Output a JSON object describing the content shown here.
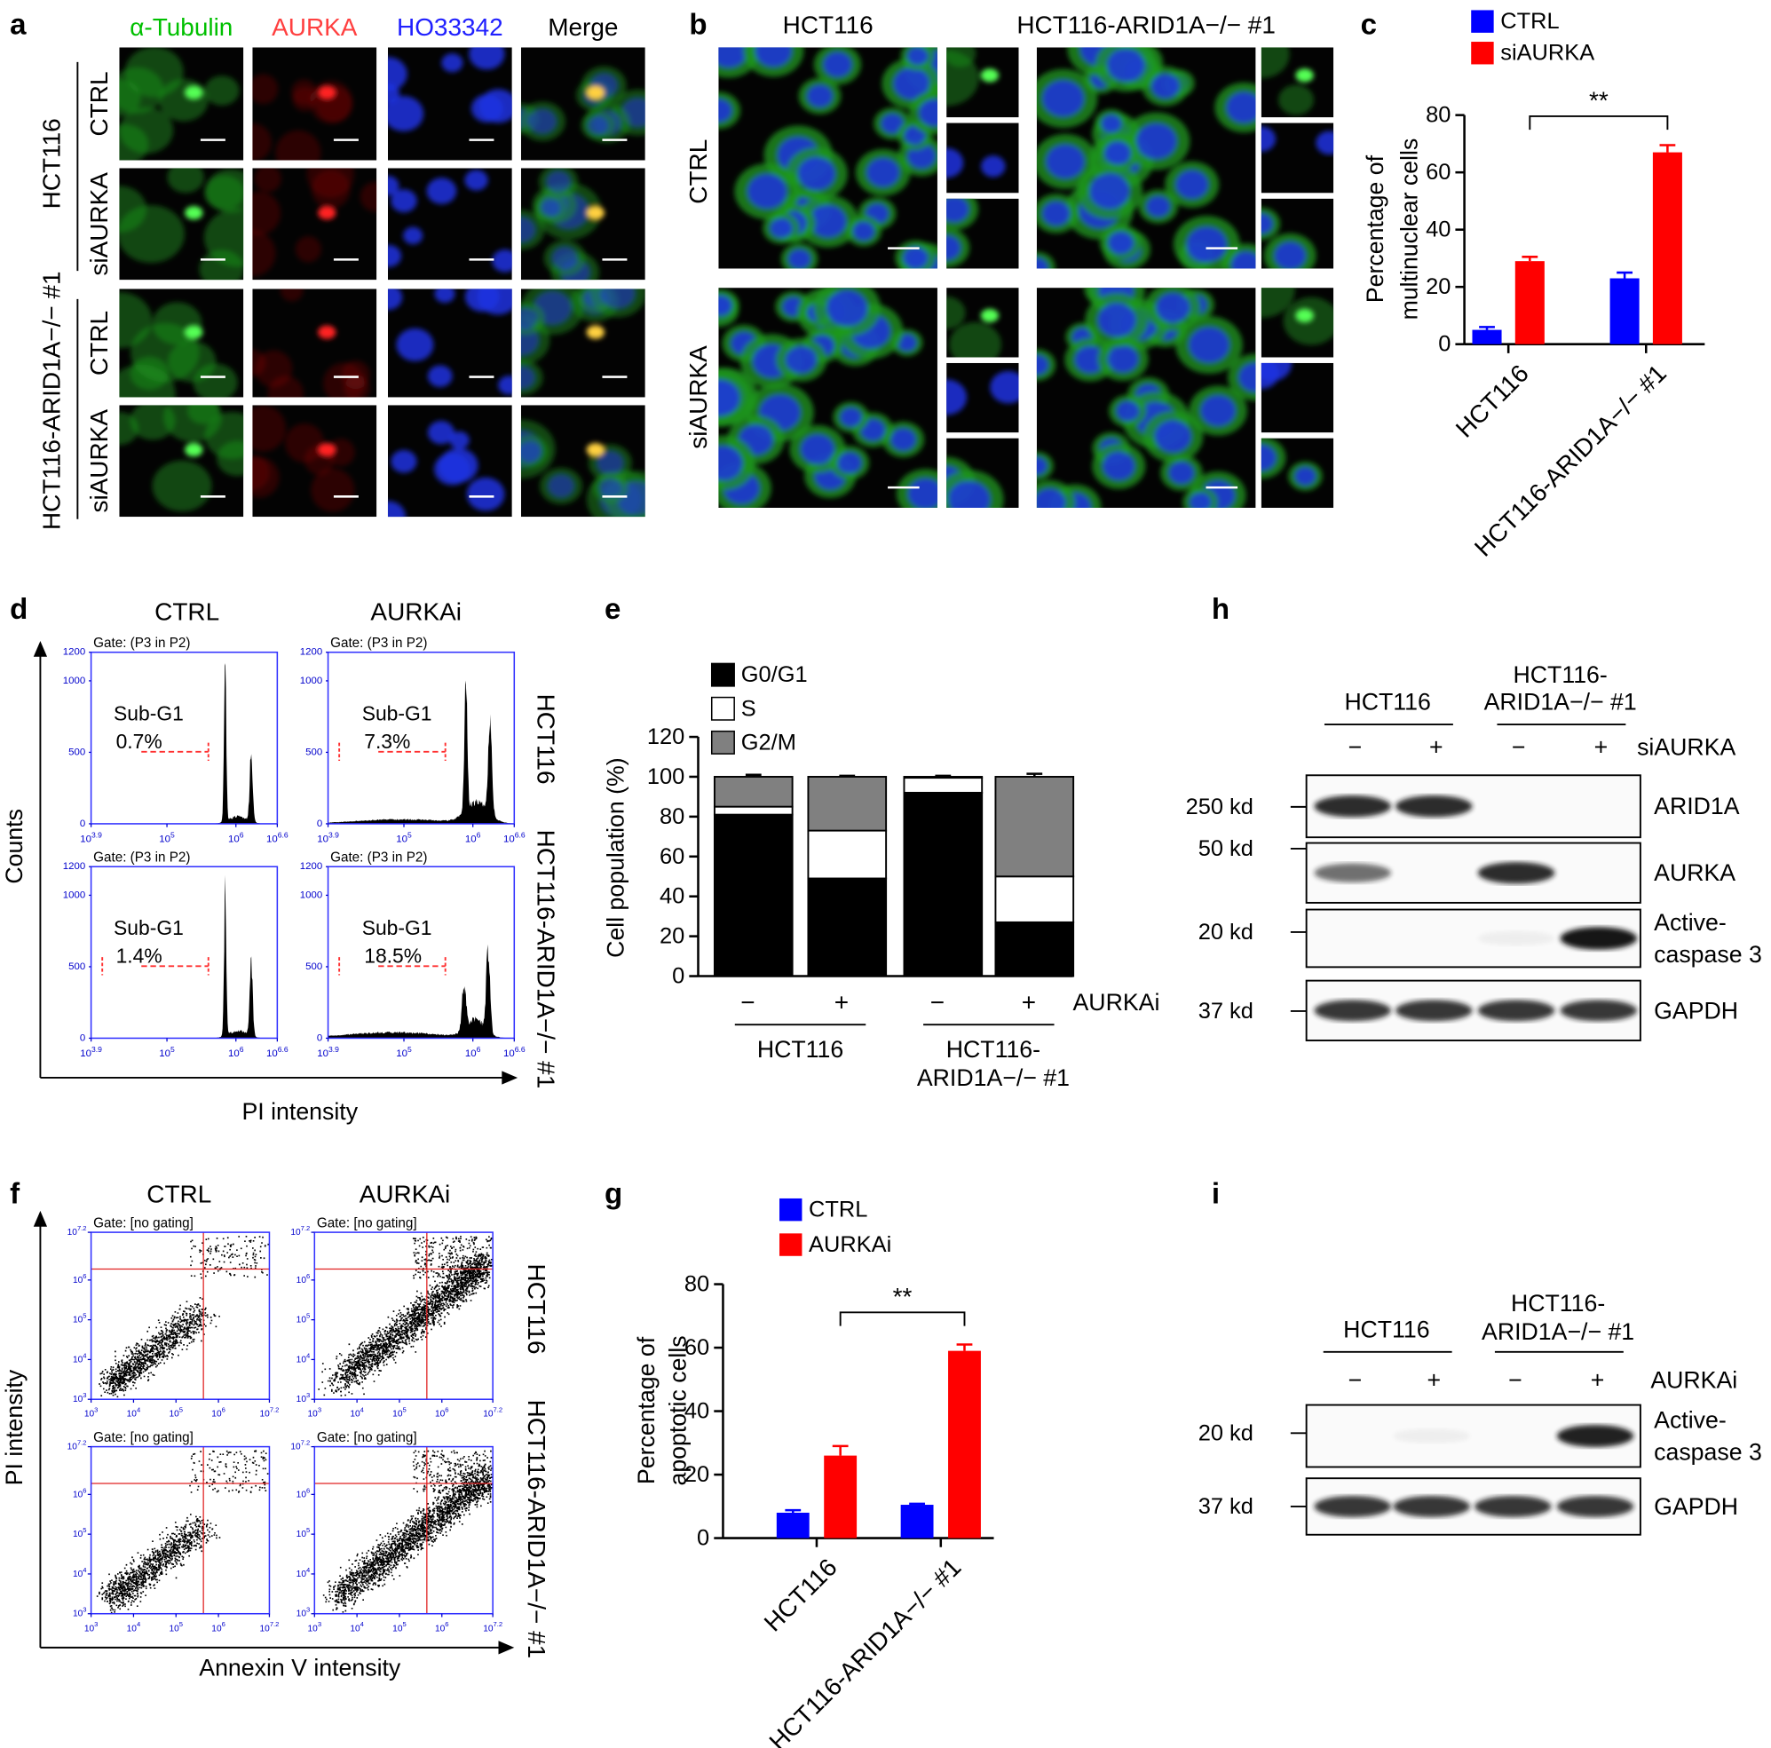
{
  "panel_labels": [
    "a",
    "b",
    "c",
    "d",
    "e",
    "f",
    "g",
    "h",
    "i"
  ],
  "panel_a": {
    "columns": [
      "α-Tubulin",
      "AURKA",
      "HO33342",
      "Merge"
    ],
    "rows": [
      "CTRL",
      "siAURKA",
      "CTRL",
      "siAURKA"
    ],
    "groups": [
      "HCT116",
      "HCT116-ARID1A−/− #1"
    ]
  },
  "panel_b": {
    "columns": [
      "HCT116",
      "HCT116-ARID1A−/− #1"
    ],
    "rows": [
      "CTRL",
      "siAURKA"
    ]
  },
  "panel_d": {
    "columns": [
      "CTRL",
      "AURKAi"
    ],
    "rows": [
      "HCT116",
      "HCT116-ARID1A−/− #1"
    ],
    "gate": "Gate: (P3 in P2)",
    "subg1": {
      "label": "Sub-G1",
      "values": [
        "0.7%",
        "7.3%",
        "1.4%",
        "18.5%"
      ]
    },
    "yticks": [
      1200,
      1000,
      500,
      0
    ],
    "xticks": [
      {
        "base": 10,
        "exp": 3.9
      },
      {
        "base": 10,
        "exp": 5
      },
      {
        "base": 10,
        "exp": 6
      },
      {
        "base": 10,
        "exp": 6.6
      }
    ],
    "xlabel": "PI intensity",
    "ylabel": "Counts"
  },
  "panel_f": {
    "columns": [
      "CTRL",
      "AURKAi"
    ],
    "rows": [
      "HCT116",
      "HCT116-ARID1A−/− #1"
    ],
    "gate": "Gate: [no gating]",
    "ticks": [
      {
        "base": 10,
        "exp": 3
      },
      {
        "base": 10,
        "exp": 4
      },
      {
        "base": 10,
        "exp": 5
      },
      {
        "base": 10,
        "exp": 6
      },
      {
        "base": 10,
        "exp": 7.2
      }
    ],
    "xlabel": "Annexin V intensity",
    "ylabel": "PI intensity"
  },
  "panel_h": {
    "groups": [
      [
        "HCT116"
      ],
      [
        "HCT116-",
        "ARID1A−/− #1"
      ]
    ],
    "lanes": [
      "−",
      "+",
      "−",
      "+"
    ],
    "treatment": "siAURKA",
    "blots": [
      {
        "marker": "250 kd",
        "label": [
          "ARID1A"
        ]
      },
      {
        "marker": "50 kd",
        "label": [
          "AURKA"
        ]
      },
      {
        "marker": "20 kd",
        "label": [
          "Active-",
          "caspase 3"
        ]
      },
      {
        "marker": "37 kd",
        "label": [
          "GAPDH"
        ]
      }
    ]
  },
  "panel_i": {
    "groups": [
      [
        "HCT116"
      ],
      [
        "HCT116-",
        "ARID1A−/− #1"
      ]
    ],
    "lanes": [
      "−",
      "+",
      "−",
      "+"
    ],
    "treatment": "AURKAi",
    "blots": [
      {
        "marker": "20 kd",
        "label": [
          "Active-",
          "caspase 3"
        ]
      },
      {
        "marker": "37 kd",
        "label": [
          "GAPDH"
        ]
      }
    ]
  },
  "chart_data": [
    {
      "type": "bar",
      "categories": [
        "HCT116",
        "HCT116-ARID1A−/− #1"
      ],
      "series": [
        {
          "name": "CTRL",
          "color": "#0000ff",
          "values": [
            5,
            23
          ],
          "errors": [
            1,
            2
          ]
        },
        {
          "name": "siAURKA",
          "color": "#ff0000",
          "values": [
            29,
            67
          ],
          "errors": [
            1.5,
            2.5
          ]
        }
      ],
      "ylabel": [
        "Percentage of",
        "multinuclear cells"
      ],
      "ylim": [
        0,
        80
      ],
      "yticks": [
        0,
        20,
        40,
        60,
        80
      ],
      "annotation": "**"
    },
    {
      "type": "stacked_bar",
      "categories": [
        "−",
        "+",
        "−",
        "+"
      ],
      "groups": [
        [
          "HCT116"
        ],
        [
          "HCT116-",
          "ARID1A−/− #1"
        ]
      ],
      "treatment": "AURKAi",
      "series": [
        {
          "name": "G0/G1",
          "color": "#000000",
          "values": [
            81,
            49,
            92,
            27
          ],
          "errors": [
            1,
            1,
            1,
            1
          ]
        },
        {
          "name": "S",
          "color": "#ffffff",
          "values": [
            4,
            24,
            7.5,
            23
          ],
          "errors": [
            1,
            1,
            0.5,
            1.5
          ]
        },
        {
          "name": "G2/M",
          "color": "#808080",
          "values": [
            15,
            27,
            0.5,
            50
          ],
          "errors": [
            1,
            0.5,
            0.5,
            1.5
          ]
        }
      ],
      "ylabel": "Cell population (%)",
      "ylim": [
        0,
        120
      ],
      "yticks": [
        0,
        20,
        40,
        60,
        80,
        100,
        120
      ]
    },
    {
      "type": "bar",
      "categories": [
        "HCT116",
        "HCT116-ARID1A−/− #1"
      ],
      "series": [
        {
          "name": "CTRL",
          "color": "#0000ff",
          "values": [
            8,
            10.5
          ],
          "errors": [
            0.8,
            0.3
          ]
        },
        {
          "name": "AURKAi",
          "color": "#ff0000",
          "values": [
            26,
            59
          ],
          "errors": [
            3,
            2
          ]
        }
      ],
      "ylabel": [
        "Percentage of",
        "apoptotic cells"
      ],
      "ylim": [
        0,
        80
      ],
      "yticks": [
        0,
        20,
        40,
        60,
        80
      ],
      "annotation": "**"
    }
  ]
}
